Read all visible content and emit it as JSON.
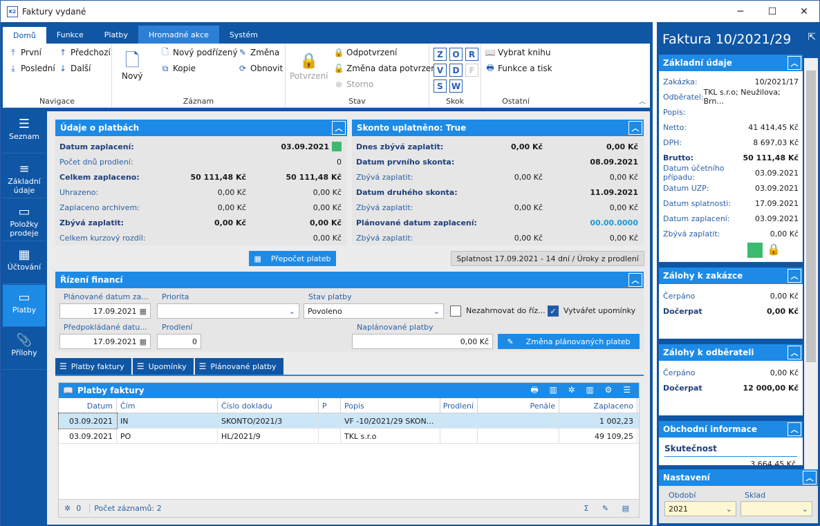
{
  "window": {
    "title": "Faktury vydané",
    "app_badge": "K2",
    "minimize": "─",
    "maximize": "☐",
    "close": "✕"
  },
  "ribbon_tabs": [
    "Domů",
    "Funkce",
    "Platby",
    "Hromadné akce",
    "Systém"
  ],
  "ribbon": {
    "navigace": {
      "label": "Navigace",
      "prvni": "První",
      "posledni": "Poslední",
      "predchozi": "Předchozí",
      "dalsi": "Další"
    },
    "zaznam": {
      "label": "Záznam",
      "novy": "Nový",
      "novy_podrizeny": "Nový podřízený",
      "kopie": "Kopie",
      "zmena": "Změna",
      "obnovit": "Obnovit"
    },
    "stav": {
      "label": "Stav",
      "potvrzeni": "Potvrzení",
      "odpotvrzeni": "Odpotvrzení",
      "zmena_data": "Změna data potvrzení",
      "storno": "Storno"
    },
    "skok": {
      "label": "Skok",
      "letters": [
        "Z",
        "O",
        "R",
        "V",
        "D",
        "F",
        "S",
        "W"
      ]
    },
    "ostatni": {
      "label": "Ostatní",
      "vybrat_knihu": "Vybrat knihu",
      "funkce_tisk": "Funkce a tisk"
    }
  },
  "sidebar": [
    {
      "label": "Seznam"
    },
    {
      "label": "Základní údaje"
    },
    {
      "label": "Položky prodeje"
    },
    {
      "label": "Účtování"
    },
    {
      "label": "Platby"
    },
    {
      "label": "Přílohy"
    }
  ],
  "udaje": {
    "title": "Údaje o platbách",
    "rows": [
      {
        "label": "Datum zaplacení:",
        "v1": "",
        "v2": "03.09.2021",
        "bold": true
      },
      {
        "label": "Počet dnů prodlení:",
        "v1": "",
        "v2": "0",
        "bold": false
      },
      {
        "label": "Celkem zaplaceno:",
        "v1": "50 111,48 Kč",
        "v2": "50 111,48 Kč",
        "bold": true
      },
      {
        "label": "Uhrazeno:",
        "v1": "0,00 Kč",
        "v2": "0,00 Kč",
        "bold": false
      },
      {
        "label": "Zaplaceno archivem:",
        "v1": "0,00 Kč",
        "v2": "0,00 Kč",
        "bold": false
      },
      {
        "label": "Zbývá zaplatit:",
        "v1": "0,00 Kč",
        "v2": "0,00 Kč",
        "bold": true
      },
      {
        "label": "Celkem kurzový rozdíl:",
        "v1": "",
        "v2": "0,00 Kč",
        "bold": false
      }
    ]
  },
  "skonto": {
    "title": "Skonto uplatněno: True",
    "rows": [
      {
        "label": "Dnes zbývá zaplatit:",
        "v1": "0,00 Kč",
        "v2": "0,00 Kč",
        "bold": true
      },
      {
        "label": "Datum prvního skonta:",
        "v1": "",
        "v2": "08.09.2021",
        "bold": true
      },
      {
        "label": "Zbývá zaplatit:",
        "v1": "0,00 Kč",
        "v2": "0,00 Kč",
        "bold": false
      },
      {
        "label": "Datum druhého skonta:",
        "v1": "",
        "v2": "11.09.2021",
        "bold": true
      },
      {
        "label": "Zbývá zaplatit:",
        "v1": "0,00 Kč",
        "v2": "0,00 Kč",
        "bold": false
      },
      {
        "label": "Plánované datum zaplacení:",
        "v1": "",
        "v2": "00.00.0000",
        "bold": true
      },
      {
        "label": "Zbývá zaplatit:",
        "v1": "0,00 Kč",
        "v2": "0,00 Kč",
        "bold": false
      }
    ]
  },
  "prepocet_button": "Přepočet plateb",
  "splatnost_button": "Splatnost 17.09.2021 - 14 dní / Úroky z prodlení",
  "rizeni": {
    "title": "Řízení financí",
    "planovane_label": "Plánované datum za...",
    "planovane_value": "17.09.2021",
    "priorita_label": "Priorita",
    "priorita_value": "",
    "stav_label": "Stav platby",
    "stav_value": "Povoleno",
    "nezahrnovat": "Nezahrnovat do říz...",
    "vytvaret": "Vytvářet upomínky",
    "predpokladane_label": "Předpokládané datu...",
    "predpokladane_value": "17.09.2021",
    "prodleni_label": "Prodlení",
    "prodleni_value": "0",
    "naplanovane_label": "Naplánované platby",
    "naplanovane_value": "0,00 Kč",
    "zmena_button": "Změna plánovaných plateb"
  },
  "bottom_tabs": [
    "Platby faktury",
    "Upomínky",
    "Plánované platby"
  ],
  "grid": {
    "title": "Platby faktury",
    "columns": [
      "Datum",
      "Čím",
      "Číslo dokladu",
      "P",
      "Popis",
      "Prodlení",
      "Penále",
      "Zaplaceno"
    ],
    "rows": [
      [
        "03.09.2021",
        "IN",
        "SKONTO/2021/3",
        "",
        "VF -10/2021/29 SKON...",
        "",
        "",
        "1 002,23"
      ],
      [
        "03.09.2021",
        "PO",
        "HL/2021/9",
        "",
        "TKL s.r.o",
        "",
        "",
        "49 109,25"
      ]
    ],
    "footer_count": "0",
    "footer_records": "Počet záznamů: 2"
  },
  "right": {
    "title": "Faktura 10/2021/29",
    "zakladni": {
      "title": "Základní údaje",
      "rows": [
        {
          "l": "Zakázka:",
          "v": "10/2021/17"
        },
        {
          "l": "Odběratel:",
          "v": "TKL s.r.o; Neužilova; Brn..."
        },
        {
          "l": "Popis:",
          "v": ""
        },
        {
          "l": "Netto:",
          "v": "41 414,45 Kč"
        },
        {
          "l": "DPH:",
          "v": "8 697,03 Kč"
        },
        {
          "l": "Brutto:",
          "v": "50 111,48 Kč",
          "b": true
        },
        {
          "l": "Datum účetního případu:",
          "v": "03.09.2021"
        },
        {
          "l": "Datum UZP:",
          "v": "03.09.2021"
        },
        {
          "l": "Datum splatnosti:",
          "v": "17.09.2021"
        },
        {
          "l": "Datum zaplacení:",
          "v": "03.09.2021"
        },
        {
          "l": "Zbývá zaplatit:",
          "v": "0,00 Kč"
        }
      ]
    },
    "zalohy_zak": {
      "title": "Zálohy k zakázce",
      "rows": [
        {
          "l": "Čerpáno",
          "v": "0,00 Kč"
        },
        {
          "l": "Dočerpat",
          "v": "0,00 Kč",
          "b": true
        }
      ]
    },
    "zalohy_odb": {
      "title": "Zálohy k odběrateli",
      "rows": [
        {
          "l": "Čerpáno",
          "v": "0,00 Kč"
        },
        {
          "l": "Dočerpat",
          "v": "12 000,00 Kč",
          "b": true
        }
      ]
    },
    "obchodni": {
      "title": "Obchodní informace",
      "sub": "Skutečnost",
      "partial": "3 664,45 Kč"
    },
    "nastaveni": {
      "title": "Nastavení",
      "obdobi_label": "Období",
      "obdobi_value": "2021",
      "sklad_label": "Sklad",
      "sklad_value": ""
    }
  },
  "colors": {
    "primary": "#0f56a5",
    "accent": "#1d8ae6",
    "status_green": "#3cba6f",
    "date_blue": "#1e9ad6"
  }
}
